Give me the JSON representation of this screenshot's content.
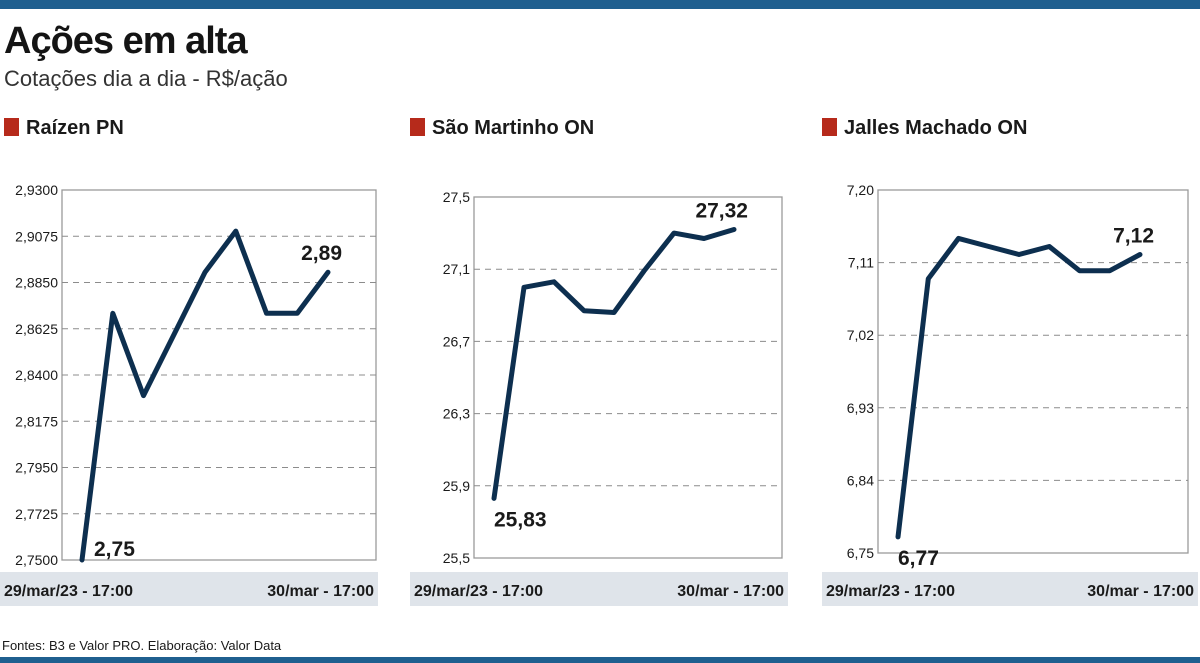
{
  "title": "Ações em alta",
  "subtitle": "Cotações dia a dia - R$/ação",
  "source": "Fontes: B3 e Valor PRO. Elaboração: Valor Data",
  "colors": {
    "line": "#0d2f4f",
    "marker": "#b62a1b",
    "axis_band": "#dfe4ea",
    "rule": "#1f5f8f"
  },
  "chart_data": [
    {
      "type": "line",
      "title": "Raízen PN",
      "x_labels": [
        "29/mar/23 - 17:00",
        "30/mar - 17:00"
      ],
      "ylim": [
        2.75,
        2.93
      ],
      "yticks": [
        "2,9300",
        "2,9075",
        "2,8850",
        "2,8625",
        "2,8400",
        "2,8175",
        "2,7950",
        "2,7725",
        "2,7500"
      ],
      "values": [
        2.75,
        2.87,
        2.83,
        2.86,
        2.89,
        2.91,
        2.87,
        2.87,
        2.89
      ],
      "first_label": "2,75",
      "last_label": "2,89"
    },
    {
      "type": "line",
      "title": "São Martinho ON",
      "x_labels": [
        "29/mar/23 - 17:00",
        "30/mar - 17:00"
      ],
      "ylim": [
        25.5,
        27.5
      ],
      "yticks": [
        "27,5",
        "27,1",
        "26,7",
        "26,3",
        "25,9",
        "25,5"
      ],
      "values": [
        25.83,
        27.0,
        27.03,
        26.87,
        26.86,
        27.09,
        27.3,
        27.27,
        27.32
      ],
      "first_label": "25,83",
      "last_label": "27,32"
    },
    {
      "type": "line",
      "title": "Jalles Machado ON",
      "x_labels": [
        "29/mar/23 - 17:00",
        "30/mar - 17:00"
      ],
      "ylim": [
        6.75,
        7.2
      ],
      "yticks": [
        "7,20",
        "7,11",
        "7,02",
        "6,93",
        "6,84",
        "6,75"
      ],
      "values": [
        6.77,
        7.09,
        7.14,
        7.13,
        7.12,
        7.13,
        7.1,
        7.1,
        7.12
      ],
      "first_label": "6,77",
      "last_label": "7,12"
    }
  ]
}
